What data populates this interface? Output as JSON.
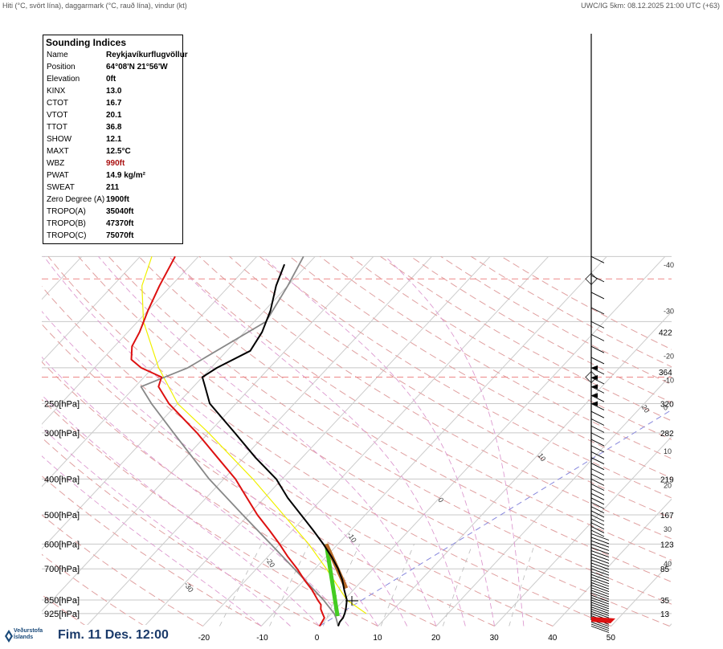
{
  "header": {
    "left": "Hiti (°C, svört lína), daggarmark (°C, rauð lína), vindur (kt)",
    "right": "UWC/IG 5km: 08.12.2025 21:00 UTC (+63)"
  },
  "indices": {
    "title": "Sounding Indices",
    "rows": [
      {
        "k": "Name",
        "v": "Reykjavíkurflugvöllur"
      },
      {
        "k": "Position",
        "v": "64°08'N 21°56'W"
      },
      {
        "k": "Elevation",
        "v": "0ft"
      },
      {
        "k": "KINX",
        "v": "13.0"
      },
      {
        "k": "CTOT",
        "v": "16.7"
      },
      {
        "k": "VTOT",
        "v": "20.1"
      },
      {
        "k": "TTOT",
        "v": "36.8"
      },
      {
        "k": "SHOW",
        "v": "12.1"
      },
      {
        "k": "MAXT",
        "v": "12.5°C"
      },
      {
        "k": "WBZ",
        "v": "990ft"
      },
      {
        "k": "PWAT",
        "v": "14.9 kg/m²"
      },
      {
        "k": "SWEAT",
        "v": "211"
      },
      {
        "k": "Zero Degree (A)",
        "v": "1900ft"
      },
      {
        "k": "TROPO(A)",
        "v": "35040ft"
      },
      {
        "k": "TROPO(B)",
        "v": "47370ft"
      },
      {
        "k": "TROPO(C)",
        "v": "75070ft"
      }
    ],
    "highlight_color": "#aa1111"
  },
  "footer": {
    "logo_line1": "Veðurstofa",
    "logo_line2": "Íslands",
    "date": "Fim. 11 Des. 12:00"
  },
  "chart_data": {
    "type": "line",
    "diagram": "skew-T log-p",
    "pressure_levels": [
      {
        "p": 250,
        "label": "250[hPa]",
        "height": "320"
      },
      {
        "p": 300,
        "label": "300[hPa]",
        "height": "282"
      },
      {
        "p": 400,
        "label": "400[hPa]",
        "height": "219"
      },
      {
        "p": 500,
        "label": "500[hPa]",
        "height": "167"
      },
      {
        "p": 600,
        "label": "600[hPa]",
        "height": "123"
      },
      {
        "p": 700,
        "label": "700[hPa]",
        "height": "85"
      },
      {
        "p": 850,
        "label": "850[hPa]",
        "height": "35"
      },
      {
        "p": 925,
        "label": "925[hPa]",
        "height": "13"
      }
    ],
    "upper_height_labels": [
      {
        "p": 160,
        "label": "422"
      },
      {
        "p": 205,
        "label": "364"
      }
    ],
    "right_temp_labels": [
      {
        "p": 105,
        "label": "-40"
      },
      {
        "p": 140,
        "label": "-30"
      },
      {
        "p": 185,
        "label": "-20"
      },
      {
        "p": 215,
        "label": "-10"
      },
      {
        "p": 255,
        "label": "0"
      },
      {
        "p": 335,
        "label": "10"
      },
      {
        "p": 415,
        "label": "20"
      },
      {
        "p": 545,
        "label": "30"
      },
      {
        "p": 675,
        "label": "40"
      }
    ],
    "x_axis_labels": [
      {
        "t": -20,
        "label": "-20"
      },
      {
        "t": -10,
        "label": "-10"
      },
      {
        "t": 0,
        "label": "0"
      },
      {
        "t": 10,
        "label": "10"
      },
      {
        "t": 20,
        "label": "20"
      },
      {
        "t": 30,
        "label": "30"
      },
      {
        "t": 40,
        "label": "40"
      },
      {
        "t": 50,
        "label": "50"
      }
    ],
    "isotherm_labels": [
      {
        "t": 30,
        "p": 170,
        "label": "30"
      },
      {
        "t": 20,
        "p": 255,
        "label": "20"
      },
      {
        "t": 10,
        "p": 345,
        "label": "10"
      },
      {
        "t": 0,
        "p": 455,
        "label": "0"
      },
      {
        "t": -10,
        "p": 565,
        "label": "-10"
      },
      {
        "t": -20,
        "p": 660,
        "label": "-20"
      },
      {
        "t": -30,
        "p": 770,
        "label": "-30"
      }
    ],
    "temperature": {
      "name": "Hiti",
      "color": "#000000",
      "points": [
        [
          1000,
          3.2
        ],
        [
          975,
          2.8
        ],
        [
          950,
          2.7
        ],
        [
          925,
          2.3
        ],
        [
          900,
          1.8
        ],
        [
          850,
          0.5
        ],
        [
          800,
          -1.5
        ],
        [
          750,
          -3.5
        ],
        [
          700,
          -6
        ],
        [
          650,
          -9
        ],
        [
          600,
          -12.5
        ],
        [
          550,
          -16.5
        ],
        [
          500,
          -21
        ],
        [
          450,
          -26
        ],
        [
          400,
          -31
        ],
        [
          350,
          -38
        ],
        [
          300,
          -45.5
        ],
        [
          250,
          -54.5
        ],
        [
          225,
          -58
        ],
        [
          212,
          -60
        ],
        [
          200,
          -59
        ],
        [
          180,
          -56
        ],
        [
          160,
          -57
        ],
        [
          140,
          -59
        ],
        [
          120,
          -62
        ],
        [
          105,
          -64
        ]
      ]
    },
    "dewpoint": {
      "name": "Daggarmark",
      "color": "#dd1111",
      "points": [
        [
          1000,
          0
        ],
        [
          950,
          -0.5
        ],
        [
          925,
          -1.5
        ],
        [
          900,
          -2.5
        ],
        [
          875,
          -3.2
        ],
        [
          850,
          -4.5
        ],
        [
          800,
          -7
        ],
        [
          750,
          -10
        ],
        [
          700,
          -13
        ],
        [
          650,
          -16.5
        ],
        [
          600,
          -20
        ],
        [
          550,
          -24
        ],
        [
          500,
          -28.5
        ],
        [
          450,
          -33
        ],
        [
          400,
          -38
        ],
        [
          350,
          -44.5
        ],
        [
          300,
          -52
        ],
        [
          250,
          -61.5
        ],
        [
          225,
          -66
        ],
        [
          212,
          -67
        ],
        [
          200,
          -72
        ],
        [
          190,
          -75
        ],
        [
          175,
          -77
        ],
        [
          160,
          -78
        ],
        [
          140,
          -80
        ],
        [
          120,
          -82
        ],
        [
          100,
          -84
        ]
      ]
    },
    "parcel": {
      "color": "#888888",
      "points": [
        [
          1000,
          3.2
        ],
        [
          950,
          1.5
        ],
        [
          925,
          0.5
        ],
        [
          900,
          -0.8
        ],
        [
          850,
          -3.5
        ],
        [
          700,
          -13.5
        ],
        [
          600,
          -21.5
        ],
        [
          500,
          -31
        ],
        [
          400,
          -42.5
        ],
        [
          300,
          -56
        ],
        [
          250,
          -64.5
        ],
        [
          225,
          -69
        ],
        [
          200,
          -64
        ],
        [
          150,
          -58
        ],
        [
          120,
          -60
        ],
        [
          100,
          -62
        ]
      ]
    },
    "yellow_line": {
      "color": "#f0f000",
      "points": [
        [
          925,
          6
        ],
        [
          850,
          0.5
        ],
        [
          700,
          -8
        ],
        [
          600,
          -15
        ],
        [
          500,
          -24
        ],
        [
          400,
          -35
        ],
        [
          300,
          -50
        ],
        [
          250,
          -60
        ],
        [
          200,
          -69
        ],
        [
          150,
          -79
        ],
        [
          120,
          -85
        ],
        [
          100,
          -88
        ]
      ]
    },
    "green_segment": {
      "color": "#44cc22",
      "points": [
        [
          940,
          1.5
        ],
        [
          600,
          -12
        ]
      ]
    },
    "brown_segment": {
      "color": "#b86a28",
      "points": [
        [
          790,
          -1.5
        ],
        [
          600,
          -12
        ]
      ]
    },
    "tropopause_levels": [
      {
        "p": 115,
        "color": "#ee8888"
      },
      {
        "p": 212,
        "color": "#ee8888"
      }
    ],
    "grid": true
  }
}
